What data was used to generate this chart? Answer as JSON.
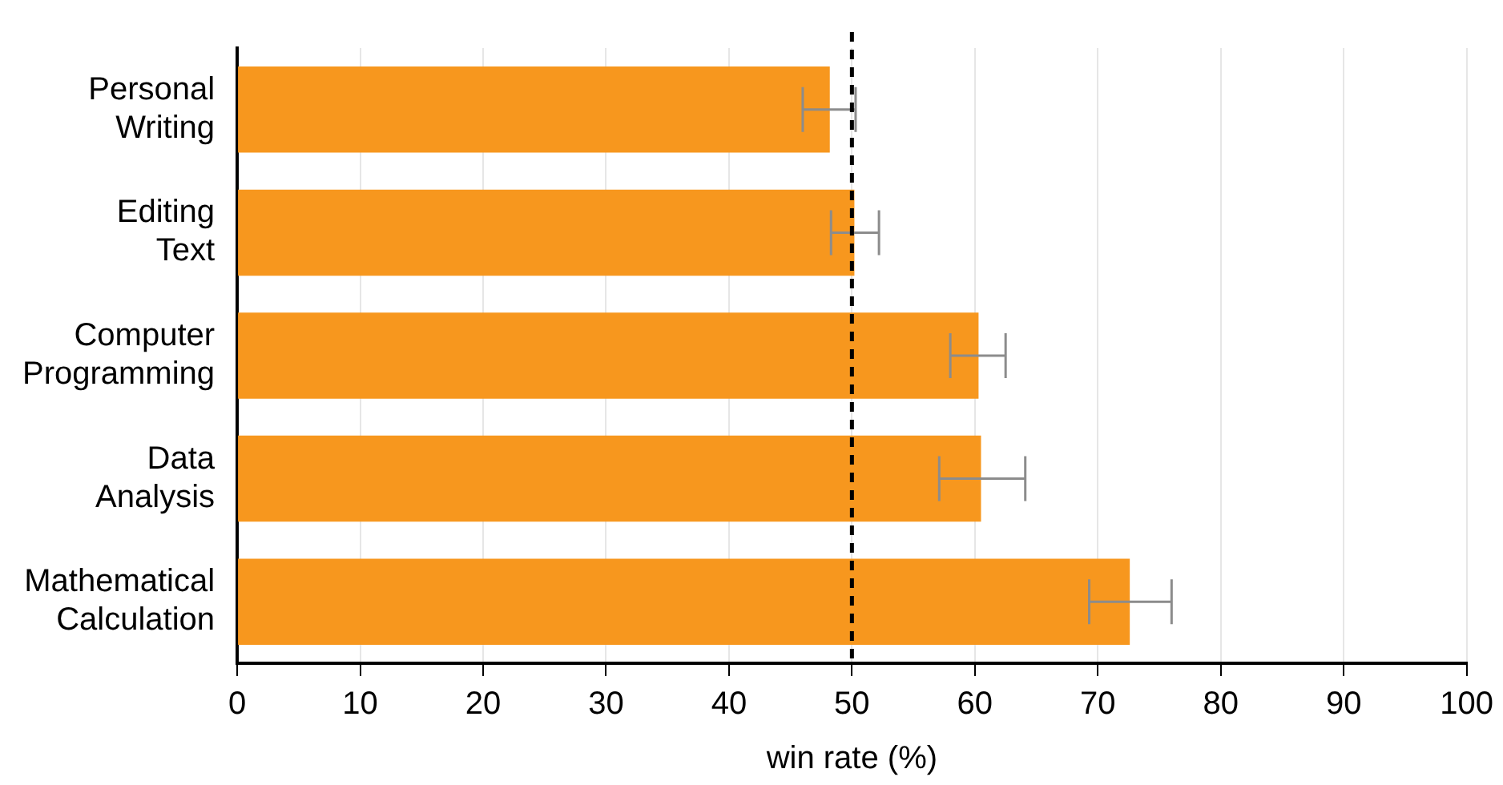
{
  "chart_data": {
    "type": "bar",
    "orientation": "horizontal",
    "xlabel": "win rate (%)",
    "categories": [
      "Personal\nWriting",
      "Editing\nText",
      "Computer\nProgramming",
      "Data\nAnalysis",
      "Mathematical\nCalculation"
    ],
    "values": [
      48.2,
      50.2,
      60.3,
      60.5,
      72.6
    ],
    "errors": [
      [
        46.0,
        50.3
      ],
      [
        48.3,
        52.2
      ],
      [
        58.0,
        62.5
      ],
      [
        57.1,
        64.1
      ],
      [
        69.3,
        76.0
      ]
    ],
    "color": "#f7971e",
    "xlim": [
      0,
      100
    ],
    "xticks": [
      0,
      10,
      20,
      30,
      40,
      50,
      60,
      70,
      80,
      90,
      100
    ],
    "grid": "x",
    "legend": false,
    "ref_lines": [
      {
        "axis": "x",
        "value": 50,
        "color": "#000000",
        "line_style": "dashed"
      }
    ]
  }
}
